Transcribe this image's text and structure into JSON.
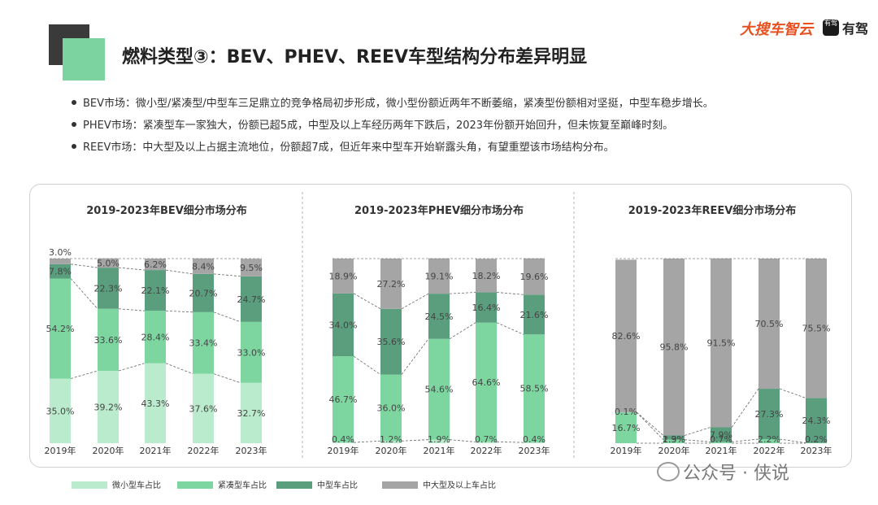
{
  "header": {
    "title": "燃料类型③：BEV、PHEV、REEV车型结构分布差异明显",
    "logo_text": "大搜车智云",
    "logo2_icon_text": "有驾",
    "logo2_text": "有驾"
  },
  "bullets": [
    "BEV市场：微小型/紧凑型/中型车三足鼎立的竞争格局初步形成，微小型份额近两年不断萎缩，紧凑型份额相对坚挺，中型车稳步增长。",
    "PHEV市场：紧凑型车一家独大，份额已超5成，中型及以上车经历两年下跌后，2023年份额开始回升，但未恢复至巅峰时刻。",
    "REEV市场：中大型及以上占据主流地位，份额超7成，但近年来中型车开始崭露头角，有望重塑该市场结构分布。"
  ],
  "colors": {
    "micro": "#b9ebcc",
    "compact": "#7dd6a0",
    "mid": "#5a9e7e",
    "large": "#a5a5a5"
  },
  "legend": [
    "微小型车占比",
    "紧凑型车占比",
    "中型车占比",
    "中大型及以上车占比"
  ],
  "watermark": "公众号 · 侠说",
  "chart_data": [
    {
      "type": "bar",
      "stacked": true,
      "title": "2019-2023年BEV细分市场分布",
      "categories": [
        "2019年",
        "2020年",
        "2021年",
        "2022年",
        "2023年"
      ],
      "ylim": [
        0,
        100
      ],
      "series": [
        {
          "name": "微小型车占比",
          "values": [
            35.0,
            39.2,
            43.3,
            37.6,
            32.7
          ]
        },
        {
          "name": "紧凑型车占比",
          "values": [
            54.2,
            33.6,
            28.4,
            33.4,
            33.0
          ]
        },
        {
          "name": "中型车占比",
          "values": [
            7.8,
            22.3,
            22.1,
            20.7,
            24.7
          ]
        },
        {
          "name": "中大型及以上车占比",
          "values": [
            3.0,
            5.0,
            6.2,
            8.4,
            9.5
          ]
        }
      ],
      "labels": [
        [
          "35.0%",
          "39.2%",
          "43.3%",
          "37.6%",
          "32.7%"
        ],
        [
          "54.2%",
          "33.6%",
          "28.4%",
          "33.4%",
          "33.0%"
        ],
        [
          "7.8%",
          "22.3%",
          "22.1%",
          "20.7%",
          "24.7%"
        ],
        [
          "3.0%",
          "5.0%",
          "6.2%",
          "8.4%",
          "9.5%"
        ]
      ]
    },
    {
      "type": "bar",
      "stacked": true,
      "title": "2019-2023年PHEV细分市场分布",
      "categories": [
        "2019年",
        "2020年",
        "2021年",
        "2022年",
        "2023年"
      ],
      "ylim": [
        0,
        100
      ],
      "series": [
        {
          "name": "微小型车占比",
          "values": [
            0.4,
            1.2,
            1.9,
            0.7,
            0.4
          ]
        },
        {
          "name": "紧凑型车占比",
          "values": [
            46.7,
            36.0,
            54.6,
            64.6,
            58.5
          ]
        },
        {
          "name": "中型车占比",
          "values": [
            34.0,
            35.6,
            24.5,
            16.4,
            21.6
          ]
        },
        {
          "name": "中大型及以上车占比",
          "values": [
            18.9,
            27.2,
            19.1,
            18.2,
            19.6
          ]
        }
      ],
      "labels": [
        [
          "0.4%",
          "1.2%",
          "1.9%",
          "0.7%",
          "0.4%"
        ],
        [
          "46.7%",
          "36.0%",
          "54.6%",
          "64.6%",
          "58.5%"
        ],
        [
          "34.0%",
          "35.6%",
          "24.5%",
          "16.4%",
          "21.6%"
        ],
        [
          "18.9%",
          "27.2%",
          "19.1%",
          "18.2%",
          "19.6%"
        ]
      ]
    },
    {
      "type": "bar",
      "stacked": true,
      "title": "2019-2023年REEV细分市场分布",
      "categories": [
        "2019年",
        "2020年",
        "2021年",
        "2022年",
        "2023年"
      ],
      "ylim": [
        0,
        100
      ],
      "series": [
        {
          "name": "微小型车占比",
          "values": [
            0.0,
            0.0,
            0.0,
            0.0,
            0.0
          ]
        },
        {
          "name": "紧凑型车占比",
          "values": [
            16.7,
            1.9,
            0.7,
            2.2,
            0.2
          ]
        },
        {
          "name": "中型车占比",
          "values": [
            0.1,
            2.3,
            7.9,
            27.3,
            24.3
          ]
        },
        {
          "name": "中大型及以上车占比",
          "values": [
            82.6,
            95.8,
            91.5,
            70.5,
            75.5
          ]
        }
      ],
      "labels": [
        [
          "",
          "",
          "",
          "",
          ""
        ],
        [
          "16.7%",
          "1.9%",
          "0.7%",
          "2.2%",
          "0.2%"
        ],
        [
          "0.1%",
          "2.3%",
          "7.9%",
          "27.3%",
          "24.3%"
        ],
        [
          "82.6%",
          "95.8%",
          "91.5%",
          "70.5%",
          "75.5%"
        ]
      ]
    }
  ]
}
